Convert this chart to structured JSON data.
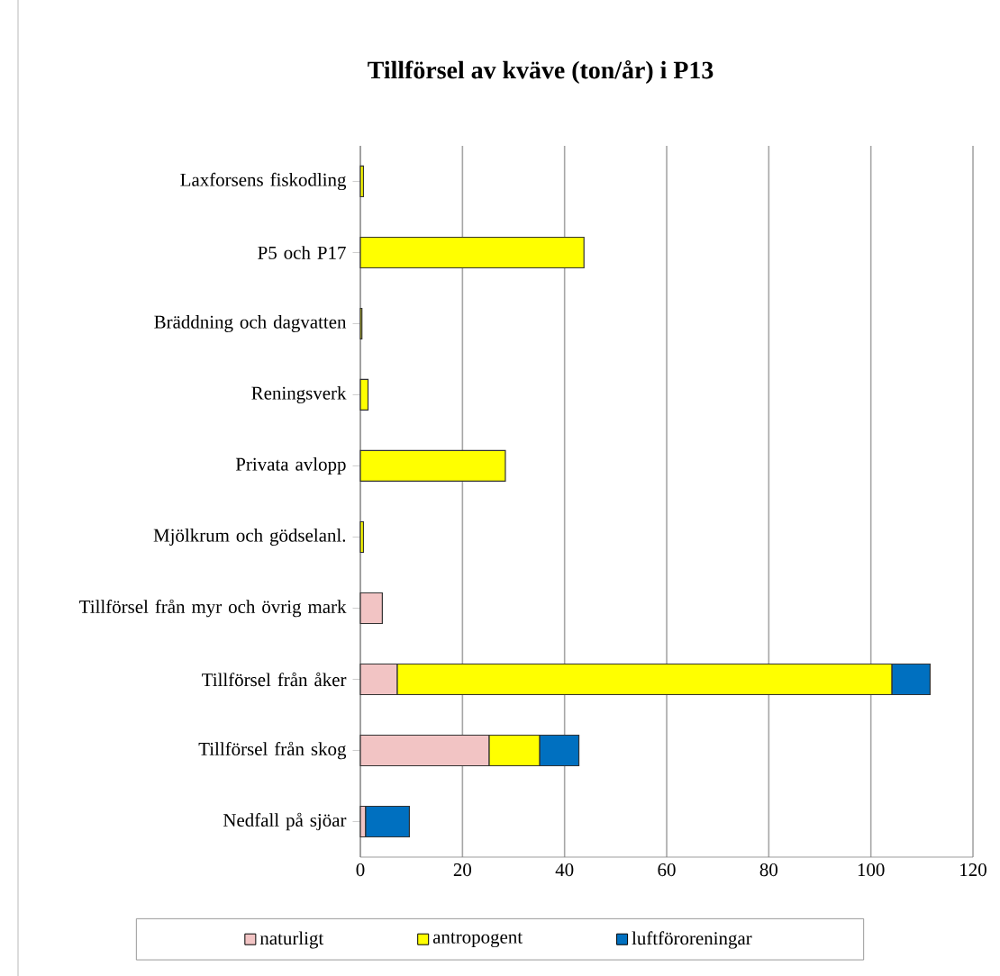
{
  "chart_data": {
    "type": "bar",
    "orientation": "horizontal",
    "stacked": true,
    "title": "Tillförsel av kväve (ton/år) i P13",
    "categories": [
      "Laxforsens fiskodling",
      "P5 och P17",
      "Bräddning och dagvatten",
      "Reningsverk",
      "Privata avlopp",
      "Mjölkrum och gödselanl.",
      "Tillförsel från myr och övrig mark",
      "Tillförsel från åker",
      "Tillförsel från skog",
      "Nedfall på sjöar"
    ],
    "series": [
      {
        "name": "naturligt",
        "color": "#f2c4c4",
        "values": [
          null,
          null,
          null,
          null,
          null,
          null,
          4.3,
          7.2,
          25.2,
          1.0
        ]
      },
      {
        "name": "antropogent",
        "color": "#ffff00",
        "values": [
          0.6,
          43.8,
          0.3,
          1.5,
          28.4,
          0.6,
          null,
          96.9,
          9.9,
          null
        ]
      },
      {
        "name": "luftföroreningar",
        "color": "#0070c0",
        "values": [
          null,
          null,
          null,
          null,
          null,
          null,
          null,
          7.5,
          7.7,
          8.6
        ]
      }
    ],
    "xlim": [
      0,
      120
    ],
    "xticks": [
      0,
      20,
      40,
      60,
      80,
      100,
      120
    ],
    "grid": "x",
    "legend": "bottom"
  }
}
